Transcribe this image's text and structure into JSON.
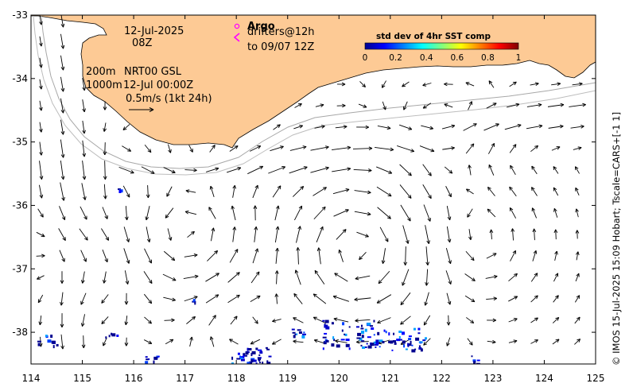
{
  "map": {
    "lon_range": [
      114,
      125
    ],
    "lat_range": [
      -38.5,
      -33
    ],
    "x_ticks": [
      "114",
      "115",
      "116",
      "117",
      "118",
      "119",
      "120",
      "121",
      "122",
      "123",
      "124",
      "125"
    ],
    "y_ticks": [
      "-33",
      "-34",
      "-35",
      "-36",
      "-37",
      "-38"
    ],
    "land_color": "#fdca95",
    "arrow_color": "#000000"
  },
  "annotations": {
    "date": "12-Jul-2025",
    "hour": "08Z",
    "depth_shallow": "200m",
    "depth_deep": "1000m",
    "model": "NRT00 GSL",
    "model_time": "12-Jul 00:00Z",
    "scale": "0.5m/s (1kt 24h)",
    "argo": "Argo",
    "drifters": "drifters@12h",
    "drifters_to": "to 09/07 12Z"
  },
  "colorbar": {
    "title": "std dev of 4hr SST comp",
    "ticks": [
      "0",
      "0.2",
      "0.4",
      "0.6",
      "0.8",
      "1"
    ],
    "colors": [
      "#00008f",
      "#0000ff",
      "#0080ff",
      "#00ffff",
      "#80ff80",
      "#ffff00",
      "#ff8000",
      "#ff0000",
      "#800000"
    ]
  },
  "legend": {
    "argo_color": "#ff00ff",
    "drifter_color": "#ff00ff"
  },
  "credit": "© IMOS 15-Jul-2025 15:09 Hobart; Tscale=CARS+[-1 1]"
}
